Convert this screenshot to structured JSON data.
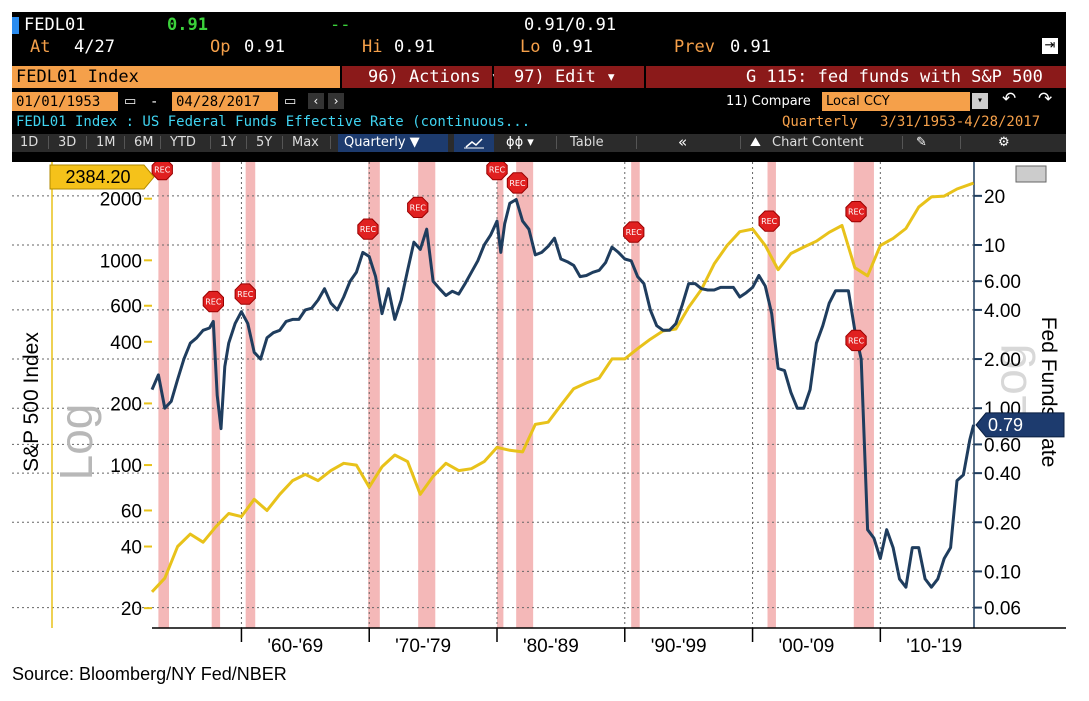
{
  "header": {
    "ticker": "FEDL01",
    "last": "0.91",
    "change": "--",
    "bid_ask": "0.91/0.91",
    "at_label": "At",
    "at_value": "4/27",
    "op_label": "Op",
    "op_value": "0.91",
    "hi_label": "Hi",
    "hi_value": "0.91",
    "lo_label": "Lo",
    "lo_value": "0.91",
    "prev_label": "Prev",
    "prev_value": "0.91"
  },
  "command_bar": {
    "security": "FEDL01 Index",
    "actions": "96) Actions ▾",
    "edit": "97) Edit ▾",
    "graph_title": "G 115: fed funds with S&P 500"
  },
  "date_bar": {
    "start_date": "01/01/1953",
    "dash": "-",
    "end_date": "04/28/2017",
    "compare": "11) Compare",
    "currency": "Local CCY"
  },
  "description": {
    "text": "FEDL01 Index : US Federal Funds Effective Rate (continuous...",
    "period": "Quarterly",
    "range": "3/31/1953-4/28/2017"
  },
  "toolbar": {
    "periods": [
      "1D",
      "3D",
      "1M",
      "6M",
      "YTD",
      "1Y",
      "5Y",
      "Max"
    ],
    "frequency": "Quarterly ▼",
    "table": "Table",
    "collapse": "«",
    "chart_content": "Chart Content"
  },
  "colors": {
    "sp500": "#e8c21a",
    "fedfunds": "#1f3d5e",
    "recession": "#f4b8b8",
    "rec_marker": "#e02020",
    "orange_bar": "#f5a04a",
    "red_bar": "#8b1a1a",
    "blue_bar": "#1d3b6e",
    "cyan_text": "#3fd3f0",
    "green": "#3bd13b"
  },
  "source": "Source: Bloomberg/NY Fed/NBER",
  "chart_data": {
    "type": "line",
    "title": "",
    "x_range": [
      1953.0,
      2017.33
    ],
    "x_tick_labels": [
      "'60-'69",
      "'70-'79",
      "'80-'89",
      "'90-'99",
      "'00-'09",
      "'10-'19"
    ],
    "left_axis": {
      "label": "S&P 500 Index",
      "scale": "Log",
      "ticks": [
        "20",
        "40",
        "60",
        "100",
        "200",
        "400",
        "600",
        "1000",
        "2000"
      ],
      "range": [
        16,
        2700
      ],
      "last_value_label": "2384.20"
    },
    "right_axis": {
      "label": "Fed Funds Rate",
      "scale": "Log",
      "ticks": [
        "0.06",
        "0.10",
        "0.20",
        "0.40",
        "0.60",
        "1.00",
        "2.00",
        "4.00",
        "6.00",
        "10",
        "20"
      ],
      "range": [
        0.045,
        28
      ],
      "last_value_label": "0.79"
    },
    "grid": true,
    "legend": "none",
    "recessions": [
      [
        1953.5,
        1954.33
      ],
      [
        1957.67,
        1958.33
      ],
      [
        1960.33,
        1961.08
      ],
      [
        1969.92,
        1970.83
      ],
      [
        1973.83,
        1975.17
      ],
      [
        1980.0,
        1980.5
      ],
      [
        1981.5,
        1982.83
      ],
      [
        1990.5,
        1991.17
      ],
      [
        2001.17,
        2001.83
      ],
      [
        2007.92,
        2009.5
      ]
    ],
    "rec_labels": [
      {
        "x": 1953.8,
        "y": 29,
        "axis": "right"
      },
      {
        "x": 1957.8,
        "y": 4.5,
        "axis": "right"
      },
      {
        "x": 1960.3,
        "y": 5.0,
        "axis": "right"
      },
      {
        "x": 1969.9,
        "y": 12.5,
        "axis": "right"
      },
      {
        "x": 1973.8,
        "y": 17,
        "axis": "right"
      },
      {
        "x": 1980.0,
        "y": 29,
        "axis": "right"
      },
      {
        "x": 1981.6,
        "y": 24,
        "axis": "right"
      },
      {
        "x": 1990.7,
        "y": 12,
        "axis": "right"
      },
      {
        "x": 2001.3,
        "y": 14,
        "axis": "right"
      },
      {
        "x": 2008.1,
        "y": 16,
        "axis": "right"
      },
      {
        "x": 2008.1,
        "y": 2.6,
        "axis": "right"
      }
    ],
    "series": [
      {
        "name": "S&P 500 Index",
        "axis": "left",
        "x": [
          1953,
          1954,
          1955,
          1956,
          1957,
          1958,
          1959,
          1960,
          1961,
          1962,
          1963,
          1964,
          1965,
          1966,
          1967,
          1968,
          1969,
          1970,
          1971,
          1972,
          1973,
          1974,
          1975,
          1976,
          1977,
          1978,
          1979,
          1980,
          1981,
          1982,
          1983,
          1984,
          1985,
          1986,
          1987,
          1988,
          1989,
          1990,
          1991,
          1992,
          1993,
          1994,
          1995,
          1996,
          1997,
          1998,
          1999,
          2000,
          2001,
          2002,
          2003,
          2004,
          2005,
          2006,
          2007,
          2008,
          2009,
          2010,
          2011,
          2012,
          2013,
          2014,
          2015,
          2016,
          2017.3
        ],
        "values": [
          24,
          28,
          40,
          46,
          42,
          50,
          58,
          56,
          68,
          60,
          72,
          84,
          90,
          84,
          94,
          102,
          100,
          78,
          98,
          112,
          104,
          72,
          88,
          102,
          94,
          96,
          104,
          122,
          118,
          116,
          158,
          162,
          196,
          236,
          252,
          266,
          330,
          330,
          370,
          412,
          452,
          462,
          590,
          720,
          960,
          1180,
          1380,
          1420,
          1180,
          900,
          1080,
          1160,
          1240,
          1370,
          1480,
          920,
          840,
          1180,
          1280,
          1430,
          1820,
          2040,
          2060,
          2230,
          2384
        ]
      },
      {
        "name": "Fed Funds Rate",
        "axis": "right",
        "x": [
          1953.0,
          1953.5,
          1954.0,
          1954.5,
          1955.0,
          1955.5,
          1956.0,
          1956.5,
          1957.0,
          1957.5,
          1957.8,
          1958.1,
          1958.4,
          1958.7,
          1959.0,
          1959.5,
          1960.0,
          1960.5,
          1961.0,
          1961.5,
          1962.0,
          1962.5,
          1963.0,
          1963.5,
          1964.0,
          1964.5,
          1965.0,
          1965.5,
          1966.0,
          1966.5,
          1967.0,
          1967.5,
          1968.0,
          1968.5,
          1969.0,
          1969.5,
          1970.0,
          1970.5,
          1971.0,
          1971.5,
          1972.0,
          1972.5,
          1973.0,
          1973.5,
          1974.0,
          1974.5,
          1975.0,
          1975.5,
          1976.0,
          1976.5,
          1977.0,
          1977.5,
          1978.0,
          1978.5,
          1979.0,
          1979.5,
          1980.0,
          1980.3,
          1980.6,
          1981.0,
          1981.5,
          1982.0,
          1982.5,
          1983.0,
          1983.5,
          1984.0,
          1984.5,
          1985.0,
          1985.5,
          1986.0,
          1986.5,
          1987.0,
          1987.5,
          1988.0,
          1988.5,
          1989.0,
          1989.5,
          1990.0,
          1990.5,
          1991.0,
          1991.5,
          1992.0,
          1992.5,
          1993.0,
          1993.5,
          1994.0,
          1994.5,
          1995.0,
          1995.5,
          1996.0,
          1996.5,
          1997.0,
          1997.5,
          1998.0,
          1998.5,
          1999.0,
          1999.5,
          2000.0,
          2000.5,
          2001.0,
          2001.5,
          2002.0,
          2002.5,
          2003.0,
          2003.5,
          2004.0,
          2004.5,
          2005.0,
          2005.5,
          2006.0,
          2006.5,
          2007.0,
          2007.5,
          2008.0,
          2008.5,
          2009.0,
          2009.5,
          2010.0,
          2010.5,
          2011.0,
          2011.5,
          2012.0,
          2012.5,
          2013.0,
          2013.5,
          2014.0,
          2014.5,
          2015.0,
          2015.5,
          2016.0,
          2016.5,
          2017.0,
          2017.3
        ],
        "values": [
          1.3,
          1.6,
          1.0,
          1.1,
          1.5,
          2.0,
          2.5,
          2.7,
          3.0,
          3.1,
          3.4,
          1.2,
          0.75,
          1.8,
          2.5,
          3.3,
          3.9,
          3.3,
          2.2,
          2.0,
          2.7,
          2.9,
          3.0,
          3.4,
          3.5,
          3.5,
          4.0,
          4.1,
          4.6,
          5.4,
          4.4,
          4.0,
          4.8,
          6.0,
          6.8,
          9.0,
          8.5,
          6.4,
          3.8,
          5.4,
          3.5,
          4.6,
          7.0,
          10.4,
          9.4,
          12.5,
          6.0,
          5.4,
          4.9,
          5.2,
          5.0,
          5.8,
          6.8,
          8.0,
          10.0,
          11.5,
          14.0,
          9.0,
          13.5,
          18.0,
          19.0,
          14.0,
          12.5,
          8.7,
          9.0,
          9.8,
          11.0,
          8.2,
          7.9,
          7.5,
          6.4,
          6.5,
          6.8,
          7.0,
          7.8,
          9.7,
          9.0,
          8.2,
          8.0,
          6.4,
          5.8,
          4.0,
          3.2,
          3.0,
          3.0,
          3.3,
          4.3,
          5.8,
          5.8,
          5.4,
          5.3,
          5.3,
          5.5,
          5.5,
          5.5,
          4.8,
          5.1,
          5.5,
          6.5,
          5.6,
          3.8,
          1.75,
          1.7,
          1.25,
          1.0,
          1.0,
          1.3,
          2.5,
          3.2,
          4.4,
          5.25,
          5.25,
          5.25,
          3.0,
          2.0,
          0.18,
          0.16,
          0.12,
          0.18,
          0.14,
          0.09,
          0.08,
          0.14,
          0.14,
          0.09,
          0.08,
          0.09,
          0.12,
          0.14,
          0.36,
          0.39,
          0.64,
          0.79
        ]
      }
    ]
  }
}
